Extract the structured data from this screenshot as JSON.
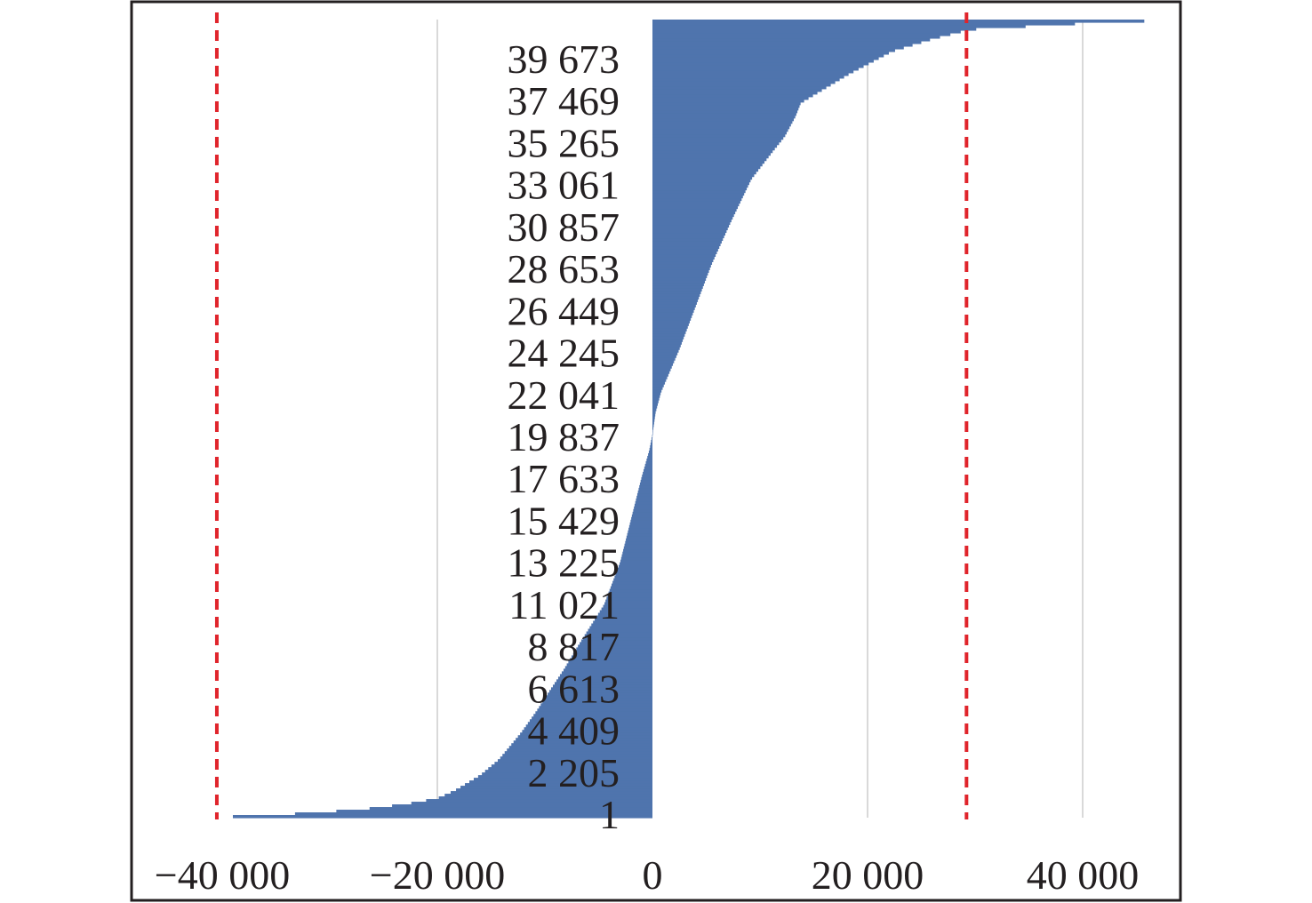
{
  "chart_data": {
    "type": "bar",
    "orientation": "horizontal",
    "description_of_values": "sorted deviations per observation index (cumulative distribution shape)",
    "x_axis": {
      "min": -43000,
      "max": 49000,
      "ticks": [
        -40000,
        -20000,
        0,
        20000,
        40000
      ],
      "tick_labels": [
        "−40 000",
        "−20 000",
        "0",
        "20 000",
        "40 000"
      ],
      "gridlines": [
        -20000,
        20000,
        40000
      ],
      "grid": true
    },
    "y_axis": {
      "min": 1,
      "max": 41300,
      "tick_values": [
        1,
        2205,
        4409,
        6613,
        8817,
        11021,
        13225,
        15429,
        17633,
        19837,
        22041,
        24245,
        26449,
        28653,
        30857,
        33061,
        35265,
        37469,
        39673
      ],
      "tick_labels": [
        "1",
        "2 205",
        "4 409",
        "6 613",
        "8 817",
        "11 021",
        "13 225",
        "15 429",
        "17 633",
        "19 837",
        "22 041",
        "24 245",
        "26 449",
        "28 653",
        "30 857",
        "33 061",
        "35 265",
        "37 469",
        "39 673"
      ]
    },
    "series": [
      {
        "color": "#4f74ad",
        "points": [
          {
            "index": 1,
            "value": -43000
          },
          {
            "index": 70,
            "value": -39000
          },
          {
            "index": 150,
            "value": -35000
          },
          {
            "index": 280,
            "value": -31000
          },
          {
            "index": 450,
            "value": -26800
          },
          {
            "index": 700,
            "value": -23000
          },
          {
            "index": 1000,
            "value": -20000
          },
          {
            "index": 1400,
            "value": -18400
          },
          {
            "index": 1800,
            "value": -17200
          },
          {
            "index": 2205,
            "value": -16000
          },
          {
            "index": 3000,
            "value": -14300
          },
          {
            "index": 3800,
            "value": -13100
          },
          {
            "index": 4409,
            "value": -12200
          },
          {
            "index": 5500,
            "value": -10800
          },
          {
            "index": 6613,
            "value": -9500
          },
          {
            "index": 7700,
            "value": -8200
          },
          {
            "index": 8817,
            "value": -7000
          },
          {
            "index": 11021,
            "value": -4500
          },
          {
            "index": 13225,
            "value": -3000
          },
          {
            "index": 15429,
            "value": -2000
          },
          {
            "index": 17633,
            "value": -1000
          },
          {
            "index": 19000,
            "value": -300
          },
          {
            "index": 19837,
            "value": 0
          },
          {
            "index": 21000,
            "value": 300
          },
          {
            "index": 22041,
            "value": 800
          },
          {
            "index": 24245,
            "value": 2500
          },
          {
            "index": 26449,
            "value": 4000
          },
          {
            "index": 28653,
            "value": 5500
          },
          {
            "index": 30857,
            "value": 7300
          },
          {
            "index": 33061,
            "value": 9200
          },
          {
            "index": 34500,
            "value": 11200
          },
          {
            "index": 35265,
            "value": 12300
          },
          {
            "index": 36300,
            "value": 13300
          },
          {
            "index": 37000,
            "value": 13800
          },
          {
            "index": 37469,
            "value": 15200
          },
          {
            "index": 38500,
            "value": 18300
          },
          {
            "index": 39673,
            "value": 22300
          },
          {
            "index": 40300,
            "value": 26000
          },
          {
            "index": 40800,
            "value": 29500
          },
          {
            "index": 41100,
            "value": 39500
          },
          {
            "index": 41300,
            "value": 49000
          }
        ]
      }
    ],
    "reference_lines": [
      {
        "axis": "x",
        "value": -40500,
        "color": "#e0242b",
        "style": "dashed"
      },
      {
        "axis": "x",
        "value": 29200,
        "color": "#e0242b",
        "style": "dashed"
      }
    ],
    "title": "",
    "xlabel": "",
    "ylabel": "",
    "colors": {
      "bar": "#4f74ad",
      "reference": "#e0242b",
      "grid": "#d9d9d9",
      "frame": "#231f20",
      "text": "#231f20"
    }
  }
}
